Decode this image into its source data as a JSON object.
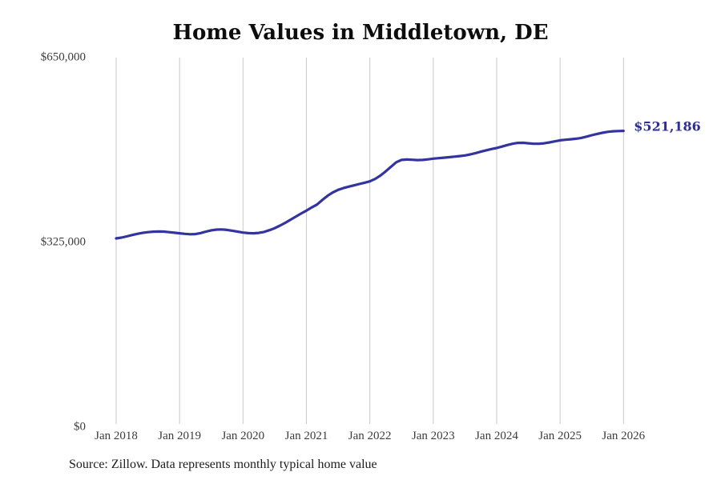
{
  "title": "Home Values in Middletown, DE",
  "source_note": "Source: Zillow. Data represents monthly typical home value",
  "colors": {
    "line": "#34349e",
    "end_label": "#2e2e96",
    "grid": "#c9c9c9",
    "title": "#0d0d0d",
    "axis_label": "#3c3c3c",
    "source": "#1c1c1c",
    "background": "#ffffff"
  },
  "chart_data": {
    "type": "line",
    "title": "Home Values in Middletown, DE",
    "xlabel": "",
    "ylabel": "",
    "frequency": "monthly",
    "x_start": "2018-01",
    "x_end": "2026-01",
    "ylim": [
      0,
      650000
    ],
    "grid": "vertical-only",
    "legend": "none",
    "x_tick_labels": [
      "Jan 2018",
      "Jan 2019",
      "Jan 2020",
      "Jan 2021",
      "Jan 2022",
      "Jan 2023",
      "Jan 2024",
      "Jan 2025",
      "Jan 2026"
    ],
    "y_ticks": [
      {
        "value": 0,
        "label": "$0"
      },
      {
        "value": 325000,
        "label": "$325,000"
      },
      {
        "value": 650000,
        "label": "$650,000"
      }
    ],
    "last_value": 521186,
    "last_value_label": "$521,186",
    "series_name": "Typical home value",
    "values": [
      332000,
      333500,
      335500,
      338000,
      340000,
      341800,
      343000,
      343800,
      344200,
      344000,
      343000,
      342000,
      341000,
      340000,
      339400,
      339700,
      341500,
      344000,
      346300,
      347500,
      347800,
      347000,
      345500,
      343800,
      342300,
      341300,
      341000,
      341800,
      343500,
      346500,
      350000,
      354500,
      359500,
      365000,
      370500,
      375800,
      380800,
      386500,
      391500,
      399500,
      407000,
      413000,
      417500,
      420500,
      423000,
      425300,
      427700,
      430000,
      432400,
      436500,
      442500,
      450000,
      458000,
      466000,
      470000,
      470800,
      470300,
      469800,
      470000,
      471000,
      472300,
      473200,
      474000,
      474800,
      475800,
      476800,
      478000,
      479800,
      482000,
      484500,
      487000,
      489200,
      491000,
      493500,
      496200,
      498500,
      500000,
      500200,
      499300,
      498500,
      498500,
      499300,
      500800,
      502700,
      504500,
      505500,
      506300,
      507300,
      508800,
      511000,
      513500,
      515800,
      517800,
      519400,
      520400,
      520900,
      521186
    ]
  }
}
